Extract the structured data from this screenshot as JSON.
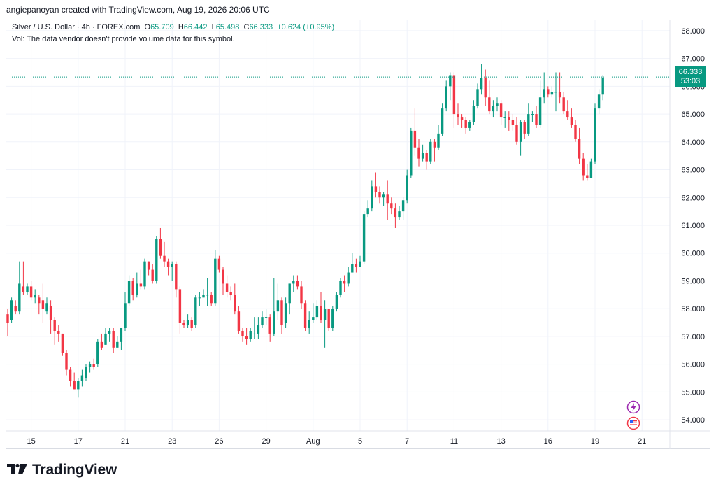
{
  "header": {
    "text": "angiepanoyan created with TradingView.com, Aug 19, 2026 20:06 UTC"
  },
  "legend": {
    "symbol": "Silver / U.S. Dollar · 4h · FOREX.com",
    "open_label": "O",
    "open": "65.709",
    "high_label": "H",
    "high": "66.442",
    "low_label": "L",
    "low": "65.498",
    "close_label": "C",
    "close": "66.333",
    "change": "+0.624 (+0.95%)",
    "vol_text": "Vol: The data vendor doesn't provide volume data for this symbol."
  },
  "price_tag": {
    "price": "66.333",
    "countdown": "53:03"
  },
  "footer": {
    "brand": "TradingView"
  },
  "colors": {
    "up": "#089981",
    "down": "#f23645",
    "grid": "#f0f3fa",
    "axis_text": "#131722"
  },
  "icons": {
    "badge1": "lightning-icon",
    "badge2": "us-flag-icon",
    "logo": "tradingview-logo-icon"
  },
  "chart_data": {
    "type": "candlestick",
    "title": "Silver / U.S. Dollar · 4h · FOREX.com",
    "ylim": [
      53.6,
      68.4
    ],
    "yticks": [
      54,
      55,
      56,
      57,
      58,
      59,
      60,
      61,
      62,
      63,
      64,
      65,
      66,
      67,
      68
    ],
    "ytick_labels": [
      "54.000",
      "55.000",
      "56.000",
      "57.000",
      "58.000",
      "59.000",
      "60.000",
      "61.000",
      "62.000",
      "63.000",
      "64.000",
      "65.000",
      "66.000",
      "67.000",
      "68.000"
    ],
    "xticks": [
      {
        "label": "15",
        "index": 6
      },
      {
        "label": "17",
        "index": 18
      },
      {
        "label": "21",
        "index": 30
      },
      {
        "label": "23",
        "index": 42
      },
      {
        "label": "26",
        "index": 54
      },
      {
        "label": "29",
        "index": 66
      },
      {
        "label": "Aug",
        "index": 78
      },
      {
        "label": "5",
        "index": 90
      },
      {
        "label": "7",
        "index": 102
      },
      {
        "label": "11",
        "index": 114
      },
      {
        "label": "13",
        "index": 126
      },
      {
        "label": "16",
        "index": 138
      },
      {
        "label": "19",
        "index": 150
      },
      {
        "label": "21",
        "index": 162
      }
    ],
    "last_price": 66.333,
    "candles": [
      [
        57.8,
        57.5,
        57.0,
        58.0
      ],
      [
        57.6,
        58.3,
        57.5,
        58.4
      ],
      [
        58.1,
        57.9,
        57.8,
        58.3
      ],
      [
        57.9,
        58.9,
        57.8,
        59.7
      ],
      [
        58.8,
        58.6,
        58.5,
        59.7
      ],
      [
        58.6,
        58.8,
        58.5,
        58.9
      ],
      [
        58.8,
        58.4,
        58.3,
        59.0
      ],
      [
        58.4,
        58.5,
        58.2,
        58.7
      ],
      [
        58.4,
        58.2,
        57.8,
        58.5
      ],
      [
        58.3,
        58.0,
        57.5,
        58.9
      ],
      [
        57.9,
        58.2,
        57.8,
        58.4
      ],
      [
        58.1,
        57.6,
        57.1,
        58.3
      ],
      [
        57.6,
        57.2,
        56.7,
        57.7
      ],
      [
        57.2,
        57.1,
        56.8,
        57.4
      ],
      [
        57.1,
        56.4,
        56.3,
        57.1
      ],
      [
        56.4,
        55.8,
        55.6,
        56.5
      ],
      [
        55.8,
        55.4,
        55.2,
        55.9
      ],
      [
        55.4,
        55.1,
        55.1,
        55.7
      ],
      [
        55.1,
        55.4,
        54.8,
        55.5
      ],
      [
        55.4,
        55.6,
        55.2,
        55.8
      ],
      [
        55.5,
        55.9,
        55.4,
        56.0
      ],
      [
        55.9,
        56.0,
        55.7,
        56.1
      ],
      [
        56.0,
        55.9,
        55.8,
        56.2
      ],
      [
        56.0,
        56.8,
        55.9,
        56.9
      ],
      [
        56.8,
        56.6,
        56.5,
        57.1
      ],
      [
        56.7,
        57.1,
        56.7,
        57.3
      ],
      [
        57.1,
        57.2,
        56.8,
        57.3
      ],
      [
        57.2,
        56.6,
        56.4,
        57.3
      ],
      [
        56.6,
        56.8,
        56.6,
        57.0
      ],
      [
        56.8,
        57.3,
        56.5,
        57.3
      ],
      [
        57.3,
        58.2,
        57.2,
        58.6
      ],
      [
        58.2,
        59.0,
        58.1,
        59.2
      ],
      [
        59.0,
        58.5,
        58.3,
        59.1
      ],
      [
        58.5,
        58.9,
        58.4,
        59.3
      ],
      [
        58.9,
        58.8,
        58.7,
        59.4
      ],
      [
        58.8,
        59.7,
        58.7,
        59.8
      ],
      [
        59.7,
        59.4,
        59.2,
        59.7
      ],
      [
        59.4,
        59.0,
        58.9,
        59.6
      ],
      [
        59.0,
        60.5,
        58.9,
        60.6
      ],
      [
        60.5,
        59.9,
        59.8,
        60.9
      ],
      [
        59.9,
        59.7,
        59.5,
        60.4
      ],
      [
        59.7,
        59.5,
        59.2,
        59.8
      ],
      [
        59.5,
        59.6,
        59.0,
        59.7
      ],
      [
        59.6,
        58.7,
        58.4,
        59.7
      ],
      [
        58.7,
        57.5,
        57.1,
        58.8
      ],
      [
        57.5,
        57.4,
        57.3,
        57.6
      ],
      [
        57.4,
        57.6,
        57.3,
        57.8
      ],
      [
        57.6,
        57.3,
        57.2,
        57.7
      ],
      [
        57.4,
        58.4,
        57.3,
        58.5
      ],
      [
        58.4,
        58.4,
        58.1,
        58.6
      ],
      [
        58.4,
        58.5,
        58.4,
        58.7
      ],
      [
        58.5,
        58.5,
        58.1,
        59.1
      ],
      [
        58.5,
        58.2,
        58.1,
        58.6
      ],
      [
        58.2,
        59.8,
        58.1,
        60.1
      ],
      [
        59.8,
        59.4,
        59.3,
        59.9
      ],
      [
        59.4,
        58.9,
        58.5,
        59.5
      ],
      [
        58.9,
        58.6,
        58.4,
        59.2
      ],
      [
        58.6,
        58.5,
        58.3,
        58.8
      ],
      [
        58.5,
        57.9,
        57.8,
        58.9
      ],
      [
        57.9,
        57.2,
        57.1,
        58.1
      ],
      [
        57.2,
        57.0,
        56.8,
        57.3
      ],
      [
        57.0,
        56.9,
        56.7,
        57.3
      ],
      [
        56.9,
        57.2,
        56.8,
        57.3
      ],
      [
        57.1,
        57.1,
        56.9,
        57.7
      ],
      [
        57.1,
        57.4,
        56.9,
        57.7
      ],
      [
        57.4,
        57.7,
        57.3,
        57.9
      ],
      [
        57.7,
        57.7,
        57.4,
        58.0
      ],
      [
        57.7,
        57.1,
        56.8,
        57.8
      ],
      [
        57.1,
        57.9,
        57.0,
        59.1
      ],
      [
        57.9,
        58.3,
        57.6,
        58.9
      ],
      [
        58.3,
        57.4,
        57.1,
        58.4
      ],
      [
        57.5,
        58.2,
        57.3,
        58.4
      ],
      [
        58.2,
        58.9,
        57.8,
        58.9
      ],
      [
        58.9,
        59.0,
        58.6,
        59.2
      ],
      [
        59.0,
        58.8,
        58.7,
        59.2
      ],
      [
        58.8,
        58.2,
        58.0,
        59.0
      ],
      [
        58.2,
        57.3,
        57.2,
        58.3
      ],
      [
        57.3,
        57.6,
        57.1,
        57.9
      ],
      [
        57.6,
        57.7,
        57.5,
        58.2
      ],
      [
        57.7,
        58.1,
        57.6,
        58.3
      ],
      [
        58.1,
        57.6,
        57.5,
        58.6
      ],
      [
        57.6,
        58.0,
        56.6,
        58.3
      ],
      [
        58.0,
        57.3,
        57.2,
        58.0
      ],
      [
        57.3,
        58.0,
        57.2,
        58.1
      ],
      [
        58.0,
        58.5,
        57.9,
        58.6
      ],
      [
        58.5,
        59.0,
        58.4,
        59.1
      ],
      [
        59.0,
        58.9,
        58.6,
        59.2
      ],
      [
        58.9,
        59.3,
        58.8,
        59.5
      ],
      [
        59.3,
        59.6,
        59.3,
        60.0
      ],
      [
        59.6,
        59.5,
        59.3,
        59.8
      ],
      [
        59.5,
        59.7,
        59.5,
        59.9
      ],
      [
        59.7,
        61.4,
        59.6,
        61.5
      ],
      [
        61.4,
        61.6,
        61.3,
        61.9
      ],
      [
        61.6,
        62.4,
        61.5,
        62.6
      ],
      [
        62.4,
        62.2,
        62.0,
        62.9
      ],
      [
        62.2,
        62.0,
        61.8,
        62.4
      ],
      [
        62.0,
        62.1,
        61.7,
        62.2
      ],
      [
        62.1,
        61.8,
        61.2,
        62.6
      ],
      [
        61.8,
        61.6,
        61.4,
        62.0
      ],
      [
        61.6,
        61.3,
        60.9,
        61.8
      ],
      [
        61.3,
        61.5,
        61.2,
        61.7
      ],
      [
        61.5,
        61.9,
        61.2,
        62.0
      ],
      [
        61.9,
        62.8,
        61.8,
        63.0
      ],
      [
        62.8,
        64.4,
        62.7,
        64.5
      ],
      [
        64.4,
        63.8,
        63.5,
        65.2
      ],
      [
        63.8,
        63.4,
        63.1,
        64.1
      ],
      [
        63.4,
        63.6,
        63.3,
        63.9
      ],
      [
        63.6,
        63.3,
        63.0,
        63.7
      ],
      [
        63.3,
        64.0,
        63.2,
        64.1
      ],
      [
        64.0,
        63.8,
        63.3,
        64.1
      ],
      [
        63.8,
        64.3,
        63.7,
        64.6
      ],
      [
        64.3,
        65.2,
        64.2,
        65.4
      ],
      [
        65.2,
        66.0,
        65.1,
        66.2
      ],
      [
        66.0,
        66.4,
        65.5,
        66.5
      ],
      [
        66.4,
        65.0,
        64.5,
        66.5
      ],
      [
        65.0,
        64.9,
        64.6,
        65.4
      ],
      [
        64.9,
        64.8,
        64.5,
        65.0
      ],
      [
        64.8,
        64.5,
        64.3,
        64.9
      ],
      [
        64.5,
        64.7,
        64.4,
        64.8
      ],
      [
        64.7,
        65.3,
        64.6,
        65.5
      ],
      [
        65.3,
        65.9,
        65.2,
        66.1
      ],
      [
        65.9,
        66.3,
        65.7,
        66.8
      ],
      [
        66.3,
        65.6,
        65.3,
        66.6
      ],
      [
        65.6,
        65.1,
        65.0,
        66.2
      ],
      [
        65.1,
        65.3,
        64.9,
        65.5
      ],
      [
        65.3,
        65.4,
        65.1,
        65.6
      ],
      [
        65.4,
        64.9,
        64.6,
        65.5
      ],
      [
        64.9,
        64.9,
        64.5,
        65.1
      ],
      [
        64.9,
        64.8,
        64.4,
        65.1
      ],
      [
        64.8,
        64.6,
        64.4,
        65.0
      ],
      [
        64.6,
        64.0,
        63.9,
        64.9
      ],
      [
        64.0,
        64.7,
        63.5,
        64.8
      ],
      [
        64.7,
        64.3,
        64.1,
        64.8
      ],
      [
        64.3,
        65.0,
        64.2,
        65.4
      ],
      [
        65.0,
        65.0,
        64.7,
        65.1
      ],
      [
        65.0,
        64.6,
        64.5,
        65.3
      ],
      [
        64.6,
        65.6,
        64.5,
        66.2
      ],
      [
        65.6,
        65.9,
        65.4,
        66.5
      ],
      [
        65.9,
        65.7,
        65.6,
        66.0
      ],
      [
        65.7,
        65.8,
        65.6,
        66.0
      ],
      [
        65.8,
        65.8,
        65.1,
        66.5
      ],
      [
        65.8,
        65.6,
        65.4,
        66.5
      ],
      [
        65.6,
        65.1,
        65.0,
        65.8
      ],
      [
        65.1,
        64.9,
        64.8,
        65.5
      ],
      [
        64.9,
        64.6,
        64.5,
        65.2
      ],
      [
        64.6,
        64.1,
        64.0,
        64.8
      ],
      [
        64.1,
        63.4,
        63.2,
        64.5
      ],
      [
        63.4,
        62.8,
        62.6,
        63.6
      ],
      [
        62.8,
        62.7,
        62.6,
        63.2
      ],
      [
        62.7,
        63.3,
        62.7,
        63.4
      ],
      [
        63.3,
        65.2,
        63.2,
        65.4
      ],
      [
        65.2,
        65.7,
        65.0,
        65.9
      ],
      [
        65.7,
        66.3,
        65.5,
        66.4
      ]
    ]
  }
}
